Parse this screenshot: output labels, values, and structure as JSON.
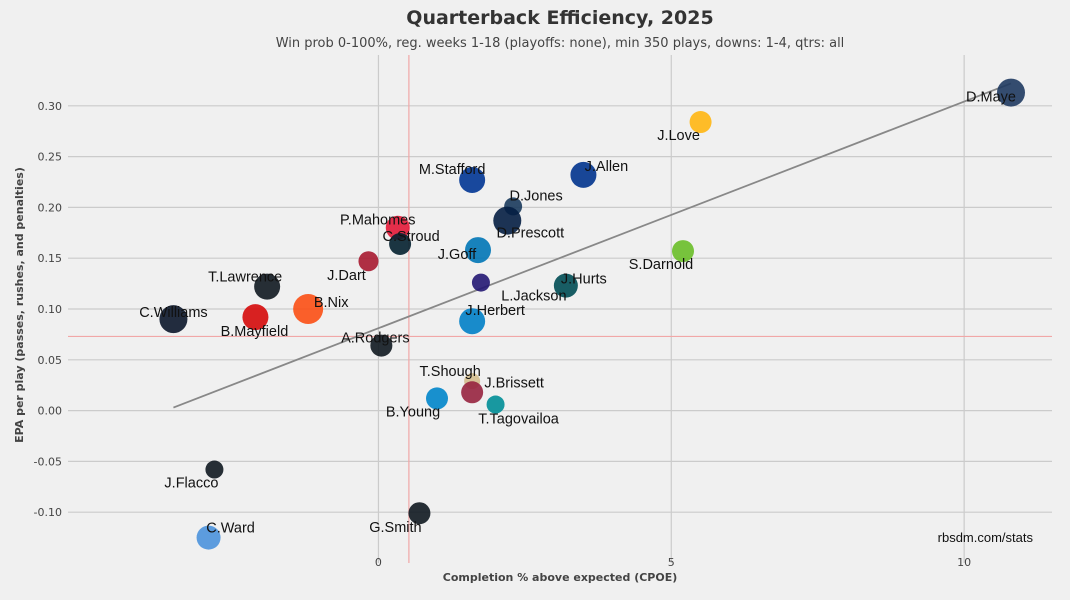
{
  "chart_data": {
    "type": "scatter",
    "title": "Quarterback Efficiency, 2025",
    "subtitle": "Win prob 0-100%, reg. weeks 1-18 (playoffs: none), min 350 plays, downs: 1-4, qtrs: all",
    "xlabel": "Completion % above expected (CPOE)",
    "ylabel": "EPA per play (passes, rushes, and penalties)",
    "credit": "rbsdm.com/stats",
    "xlim": [
      -5.3,
      11.5
    ],
    "ylim": [
      -0.15,
      0.35
    ],
    "x_ticks": [
      0,
      5,
      10
    ],
    "x_tick_labels": [
      "0",
      "5",
      "10"
    ],
    "y_ticks": [
      -0.1,
      -0.05,
      0.0,
      0.05,
      0.1,
      0.15,
      0.2,
      0.25,
      0.3
    ],
    "y_tick_labels": [
      "-0.10",
      "-0.05",
      "0.00",
      "0.05",
      "0.10",
      "0.15",
      "0.20",
      "0.25",
      "0.30"
    ],
    "mean_x": 0.52,
    "mean_y": 0.073,
    "trend_line": {
      "x": [
        -3.5,
        10.8
      ],
      "y": [
        0.003,
        0.322
      ]
    },
    "points": [
      {
        "name": "D.Maye",
        "x": 10.8,
        "y": 0.313,
        "size": 14,
        "color": "#1f3a60"
      },
      {
        "name": "J.Love",
        "x": 5.5,
        "y": 0.284,
        "size": 11,
        "color": "#ffb612"
      },
      {
        "name": "J.Allen",
        "x": 3.5,
        "y": 0.232,
        "size": 13,
        "color": "#00338d"
      },
      {
        "name": "M.Stafford",
        "x": 1.6,
        "y": 0.227,
        "size": 13,
        "color": "#003594"
      },
      {
        "name": "D.Jones",
        "x": 2.3,
        "y": 0.201,
        "size": 9,
        "color": "#1a3a5c"
      },
      {
        "name": "D.Prescott",
        "x": 2.2,
        "y": 0.187,
        "size": 14,
        "color": "#041e42"
      },
      {
        "name": "P.Mahomes",
        "x": 0.33,
        "y": 0.18,
        "size": 12,
        "color": "#e31837"
      },
      {
        "name": "C.Stroud",
        "x": 0.37,
        "y": 0.164,
        "size": 11,
        "color": "#03202f"
      },
      {
        "name": "J.Goff",
        "x": 1.7,
        "y": 0.158,
        "size": 13,
        "color": "#0076b6"
      },
      {
        "name": "S.Darnold",
        "x": 5.2,
        "y": 0.157,
        "size": 11,
        "color": "#69be28"
      },
      {
        "name": "J.Dart",
        "x": -0.17,
        "y": 0.147,
        "size": 10,
        "color": "#a71930"
      },
      {
        "name": "L.Jackson",
        "x": 1.75,
        "y": 0.126,
        "size": 9,
        "color": "#241773"
      },
      {
        "name": "J.Hurts",
        "x": 3.2,
        "y": 0.123,
        "size": 12,
        "color": "#004c54"
      },
      {
        "name": "T.Lawrence",
        "x": -1.9,
        "y": 0.122,
        "size": 13,
        "color": "#101820"
      },
      {
        "name": "B.Nix",
        "x": -1.2,
        "y": 0.1,
        "size": 15,
        "color": "#fb4f14"
      },
      {
        "name": "B.Mayfield",
        "x": -2.1,
        "y": 0.092,
        "size": 13,
        "color": "#d50a0a"
      },
      {
        "name": "C.Williams",
        "x": -3.5,
        "y": 0.09,
        "size": 14,
        "color": "#0b162a"
      },
      {
        "name": "J.Herbert",
        "x": 1.6,
        "y": 0.088,
        "size": 13,
        "color": "#0080c6"
      },
      {
        "name": "A.Rodgers",
        "x": 0.05,
        "y": 0.064,
        "size": 11,
        "color": "#101820"
      },
      {
        "name": "T.Shough",
        "x": 1.6,
        "y": 0.029,
        "size": 8,
        "color": "#d3bc8d"
      },
      {
        "name": "J.Brissett",
        "x": 1.6,
        "y": 0.018,
        "size": 11,
        "color": "#97233f"
      },
      {
        "name": "B.Young",
        "x": 1.0,
        "y": 0.012,
        "size": 11,
        "color": "#0085ca"
      },
      {
        "name": "T.Tagovailoa",
        "x": 2.0,
        "y": 0.006,
        "size": 9,
        "color": "#008e97"
      },
      {
        "name": "J.Flacco",
        "x": -2.8,
        "y": -0.058,
        "size": 9,
        "color": "#101820"
      },
      {
        "name": "G.Smith",
        "x": 0.7,
        "y": -0.101,
        "size": 11,
        "color": "#101820"
      },
      {
        "name": "C.Ward",
        "x": -2.9,
        "y": -0.125,
        "size": 12,
        "color": "#4b92db"
      }
    ]
  }
}
